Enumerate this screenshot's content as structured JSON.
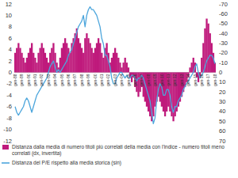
{
  "chart_data": {
    "type": "bar",
    "categories": [
      "gen-88",
      null,
      null,
      null,
      "gen-89",
      null,
      null,
      null,
      "gen-90",
      null,
      null,
      null,
      "gen-91",
      null,
      null,
      null,
      "gen-92",
      null,
      null,
      null,
      "gen-93",
      null,
      null,
      null,
      "gen-94",
      null,
      null,
      null,
      "gen-95",
      null,
      null,
      null,
      "gen-96",
      null,
      null,
      null,
      "gen-97",
      null,
      null,
      null,
      "gen-98",
      null,
      null,
      null,
      "gen-99",
      null,
      null,
      null,
      "gen-00",
      null,
      null,
      null,
      "gen-01",
      null,
      null,
      null,
      "gen-02",
      null,
      null,
      null,
      "gen-03",
      null,
      null,
      null,
      "gen-04",
      null,
      null,
      null,
      "gen-05",
      null,
      null,
      null,
      "gen-06",
      null,
      null,
      null,
      "gen-07",
      null,
      null,
      null,
      "gen-08",
      null,
      null,
      null,
      "gen-09",
      null,
      null,
      null,
      "gen-10",
      null,
      null,
      null,
      "gen-11",
      null,
      null,
      null,
      "gen-12",
      null,
      null,
      null,
      "gen-13",
      null,
      null,
      null,
      "gen-14",
      null,
      null,
      null,
      "gen-15",
      null,
      null,
      null,
      "gen-16",
      null,
      null,
      null,
      "gen-17",
      null,
      null,
      null,
      "gen-18"
    ],
    "series": [
      {
        "name": "Distanza dalla media di numero titoli più correlati della media con l'indice - numero titoli meno correlati (dx, invertita)",
        "type": "bar",
        "axis": "y2",
        "color": "#bf1a7c",
        "values": [
          -20,
          -25,
          -30,
          -25,
          -20,
          -15,
          -10,
          -15,
          -20,
          -25,
          -30,
          -20,
          -15,
          -10,
          -20,
          -25,
          -30,
          -25,
          -20,
          -15,
          -10,
          -20,
          -25,
          -30,
          -20,
          -10,
          -5,
          -15,
          -25,
          -30,
          -35,
          -30,
          -25,
          -20,
          -30,
          -35,
          -40,
          -45,
          -35,
          -30,
          -25,
          -20,
          -35,
          -40,
          -35,
          -30,
          -25,
          -20,
          -25,
          -30,
          -35,
          -30,
          -20,
          -15,
          -25,
          -30,
          -20,
          -10,
          -15,
          -20,
          -25,
          -20,
          -15,
          -10,
          -5,
          -10,
          -15,
          -10,
          -5,
          5,
          10,
          5,
          15,
          20,
          25,
          20,
          15,
          25,
          30,
          35,
          40,
          45,
          50,
          45,
          35,
          30,
          25,
          30,
          35,
          40,
          45,
          40,
          35,
          40,
          45,
          50,
          45,
          40,
          35,
          30,
          25,
          20,
          15,
          10,
          5,
          -5,
          -10,
          -15,
          -10,
          5,
          10,
          5,
          -15,
          -30,
          -45,
          -55,
          -50,
          -40,
          -30,
          -20,
          -10
        ]
      },
      {
        "name": "Distanza del P/E rispetto alla media storica (sin)",
        "type": "line",
        "axis": "y",
        "color": "#4da6dc",
        "values": [
          -6,
          -7,
          -7.5,
          -7,
          -6.5,
          -6,
          -5,
          -4.5,
          -5,
          -6,
          -7,
          -6,
          -5,
          -4,
          -3.5,
          -3,
          -2.5,
          -2,
          -1.5,
          -1,
          0,
          1,
          1.5,
          2,
          1,
          0,
          0.5,
          0,
          0.5,
          1,
          1.5,
          2,
          3,
          3.5,
          4,
          5,
          6,
          7,
          8,
          8.5,
          9,
          10,
          8,
          10,
          11,
          11.5,
          11,
          11,
          10.5,
          10,
          9,
          8,
          6,
          5,
          3,
          3,
          2,
          1,
          -1,
          -2,
          -2,
          -1,
          -0.5,
          0,
          0,
          -0.5,
          -1,
          -0.5,
          -1,
          -1,
          -0.5,
          -0.5,
          -1,
          -1.5,
          -1,
          -1,
          -0.5,
          -1,
          -2,
          -3,
          -4,
          -5,
          -7,
          -9,
          -8,
          -5,
          -3,
          -2,
          -2.5,
          -4,
          -4,
          -3,
          -3,
          -4,
          -6,
          -7,
          -6,
          -6,
          -5,
          -4.5,
          -4,
          -3,
          -2.5,
          -2,
          -1.5,
          -1,
          -0.5,
          0,
          1,
          1.5,
          0,
          -1,
          -0.5,
          0,
          1,
          2,
          2.5,
          3,
          3,
          2.5,
          1.5
        ]
      }
    ],
    "ylim": [
      -12,
      12
    ],
    "yticks": [
      -12,
      -10,
      -8,
      -6,
      -4,
      -2,
      0,
      2,
      4,
      6,
      8,
      10,
      12
    ],
    "y2lim": [
      70,
      -70
    ],
    "y2ticks": [
      -70,
      -60,
      -50,
      -40,
      -30,
      -20,
      -10,
      0,
      10,
      20,
      30,
      40,
      50,
      60,
      70
    ],
    "grid": false,
    "legend": "bottom"
  }
}
